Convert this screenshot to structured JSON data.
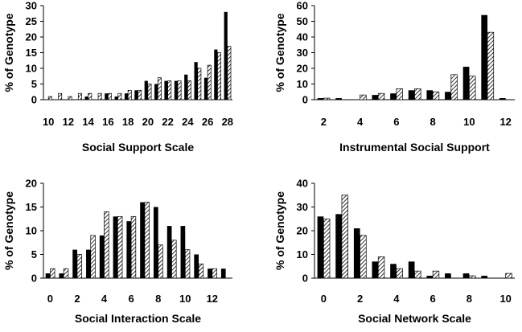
{
  "colors": {
    "solid": "#000000",
    "hatch": "#000000",
    "background": "#ffffff",
    "axis": "#000000"
  },
  "chart_data": [
    {
      "type": "bar",
      "xlabel": "Social Support Scale",
      "ylabel": "% of Genotype",
      "ylim": [
        0,
        30
      ],
      "yticks": [
        0,
        5,
        10,
        15,
        20,
        25,
        30
      ],
      "categories": [
        10,
        11,
        12,
        13,
        14,
        15,
        16,
        17,
        18,
        19,
        20,
        21,
        22,
        23,
        24,
        25,
        26,
        27,
        28
      ],
      "xtick_labels": [
        "10",
        "12",
        "14",
        "16",
        "18",
        "20",
        "22",
        "24",
        "26",
        "28"
      ],
      "xtick_positions": [
        10,
        12,
        14,
        16,
        18,
        20,
        22,
        24,
        26,
        28
      ],
      "grid": false,
      "legend": "none",
      "series": [
        {
          "pattern": "solid",
          "values": [
            0,
            0,
            0,
            0,
            1,
            0,
            2,
            1,
            2,
            3,
            6,
            5,
            6,
            6,
            8,
            12,
            7,
            16,
            28
          ]
        },
        {
          "pattern": "hatched",
          "values": [
            1,
            2,
            1,
            2,
            2,
            2,
            2,
            2,
            3,
            3,
            5,
            7,
            6,
            6,
            6,
            10,
            11,
            15,
            17
          ]
        }
      ]
    },
    {
      "type": "bar",
      "xlabel": "Instrumental Social Support",
      "ylabel": "% of Genotype",
      "ylim": [
        0,
        60
      ],
      "yticks": [
        0,
        10,
        20,
        30,
        40,
        50,
        60
      ],
      "categories": [
        2,
        3,
        4,
        5,
        6,
        7,
        8,
        9,
        10,
        11,
        12
      ],
      "xtick_labels": [
        "2",
        "4",
        "6",
        "8",
        "10",
        "12"
      ],
      "xtick_positions": [
        2,
        4,
        6,
        8,
        10,
        12
      ],
      "grid": false,
      "legend": "none",
      "series": [
        {
          "pattern": "solid",
          "values": [
            1,
            1,
            0,
            3,
            4,
            6,
            6,
            5,
            21,
            54,
            1
          ]
        },
        {
          "pattern": "hatched",
          "values": [
            1,
            0,
            3,
            4,
            7,
            7,
            5,
            16,
            15,
            43,
            0
          ]
        }
      ]
    },
    {
      "type": "bar",
      "xlabel": "Social Interaction Scale",
      "ylabel": "% of Genotype",
      "ylim": [
        0,
        20
      ],
      "yticks": [
        0,
        5,
        10,
        15,
        20
      ],
      "categories": [
        0,
        1,
        2,
        3,
        4,
        5,
        6,
        7,
        8,
        9,
        10,
        11,
        12,
        13
      ],
      "xtick_labels": [
        "0",
        "2",
        "4",
        "6",
        "8",
        "10",
        "12"
      ],
      "xtick_positions": [
        0,
        2,
        4,
        6,
        8,
        10,
        12
      ],
      "grid": false,
      "legend": "none",
      "series": [
        {
          "pattern": "solid",
          "values": [
            1,
            1,
            6,
            6,
            9,
            13,
            12,
            16,
            15,
            11,
            11,
            5,
            2,
            2
          ]
        },
        {
          "pattern": "hatched",
          "values": [
            2,
            2,
            5,
            9,
            14,
            13,
            13,
            16,
            7,
            8,
            6,
            3,
            2,
            0
          ]
        }
      ]
    },
    {
      "type": "bar",
      "xlabel": "Social Network Scale",
      "ylabel": "% of Genotype",
      "ylim": [
        0,
        40
      ],
      "yticks": [
        0,
        10,
        20,
        30,
        40
      ],
      "categories": [
        0,
        1,
        2,
        3,
        4,
        5,
        6,
        7,
        8,
        9,
        10
      ],
      "xtick_labels": [
        "0",
        "2",
        "4",
        "6",
        "8",
        "10"
      ],
      "xtick_positions": [
        0,
        2,
        4,
        6,
        8,
        10
      ],
      "grid": false,
      "legend": "none",
      "series": [
        {
          "pattern": "solid",
          "values": [
            26,
            27,
            21,
            7,
            6,
            7,
            1,
            2,
            2,
            1,
            0
          ]
        },
        {
          "pattern": "hatched",
          "values": [
            25,
            35,
            18,
            9,
            4,
            3,
            3,
            0,
            1,
            0,
            2
          ]
        }
      ]
    }
  ]
}
